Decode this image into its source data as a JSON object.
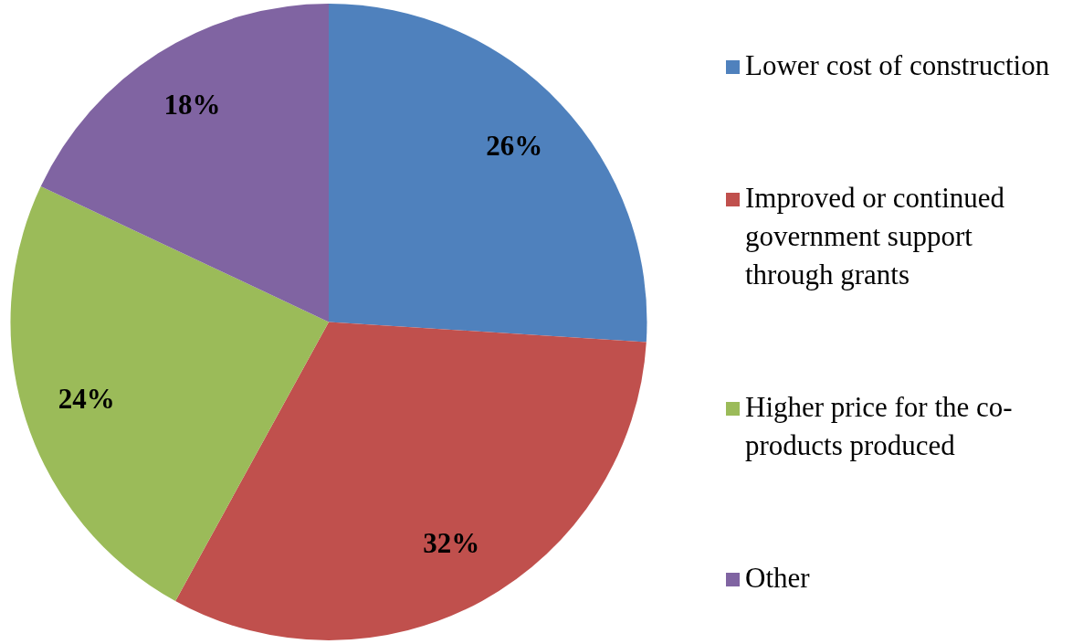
{
  "chart_data": {
    "type": "pie",
    "categories": [
      "Lower cost of construction",
      "Improved or continued government support through grants",
      "Higher price for the co-products produced",
      "Other"
    ],
    "values": [
      26,
      32,
      24,
      18
    ],
    "colors": [
      "#4f81bd",
      "#c0504d",
      "#9bbb59",
      "#8064a2"
    ],
    "value_labels": [
      "26%",
      "32%",
      "24%",
      "18%"
    ],
    "legend": "right"
  }
}
